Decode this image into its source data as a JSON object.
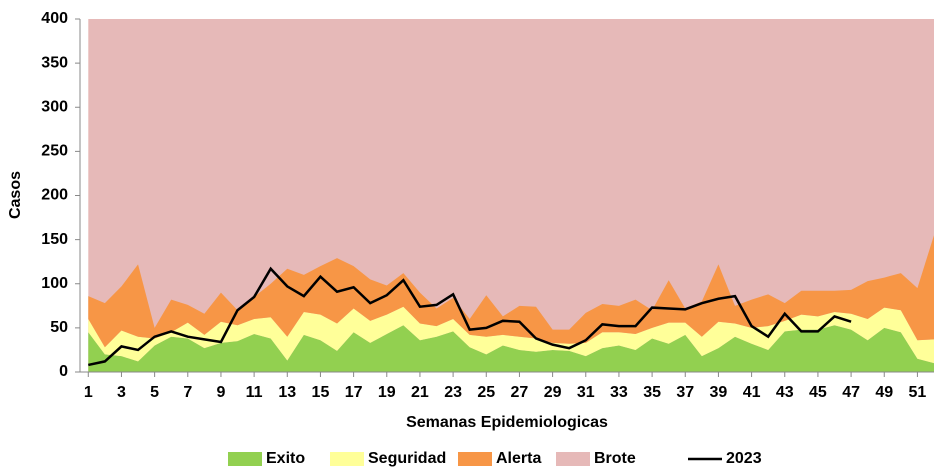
{
  "chart_data": {
    "type": "area",
    "stacked": true,
    "x_label": "Semanas Epidemiologicas",
    "y_label": "Casos",
    "x": [
      1,
      2,
      3,
      4,
      5,
      6,
      7,
      8,
      9,
      10,
      11,
      12,
      13,
      14,
      15,
      16,
      17,
      18,
      19,
      20,
      21,
      22,
      23,
      24,
      25,
      26,
      27,
      28,
      29,
      30,
      31,
      32,
      33,
      34,
      35,
      36,
      37,
      38,
      39,
      40,
      41,
      42,
      43,
      44,
      45,
      46,
      47,
      48,
      49,
      50,
      51,
      52
    ],
    "xlim": [
      0.5,
      52
    ],
    "xticks": [
      1,
      3,
      5,
      7,
      9,
      11,
      13,
      15,
      17,
      19,
      21,
      23,
      25,
      27,
      29,
      31,
      33,
      35,
      37,
      39,
      41,
      43,
      45,
      47,
      49,
      51
    ],
    "ylim": [
      0,
      400
    ],
    "yticks": [
      0,
      50,
      100,
      150,
      200,
      250,
      300,
      350,
      400
    ],
    "grid": false,
    "legend": "bottom",
    "series": [
      {
        "name": "Exito",
        "type": "area",
        "color": "#92d050",
        "values": [
          45,
          20,
          18,
          12,
          30,
          40,
          38,
          27,
          33,
          35,
          43,
          38,
          13,
          42,
          36,
          24,
          45,
          33,
          43,
          53,
          36,
          40,
          46,
          28,
          20,
          30,
          25,
          23,
          25,
          24,
          18,
          27,
          30,
          25,
          38,
          32,
          42,
          18,
          27,
          40,
          32,
          25,
          46,
          48,
          48,
          53,
          48,
          36,
          50,
          45,
          15,
          10
        ]
      },
      {
        "name": "Seguridad",
        "type": "area",
        "color": "#ffff99",
        "values": [
          15,
          8,
          29,
          28,
          8,
          5,
          18,
          15,
          24,
          18,
          17,
          24,
          27,
          26,
          29,
          31,
          27,
          25,
          22,
          21,
          19,
          12,
          14,
          14,
          20,
          12,
          15,
          15,
          8,
          8,
          15,
          18,
          15,
          18,
          12,
          24,
          14,
          22,
          30,
          15,
          18,
          27,
          12,
          17,
          15,
          15,
          18,
          24,
          23,
          25,
          21,
          27
        ]
      },
      {
        "name": "Alerta",
        "type": "area",
        "color": "#f79646",
        "values": [
          26,
          50,
          50,
          82,
          12,
          37,
          20,
          24,
          33,
          17,
          25,
          38,
          77,
          42,
          55,
          74,
          48,
          47,
          33,
          38,
          35,
          20,
          24,
          18,
          47,
          21,
          35,
          36,
          15,
          16,
          34,
          32,
          30,
          39,
          20,
          48,
          16,
          40,
          65,
          20,
          32,
          36,
          20,
          27,
          29,
          24,
          27,
          43,
          34,
          42,
          59,
          118
        ]
      },
      {
        "name": "Brote",
        "type": "fill-to-top",
        "color": "#e6b9b8"
      },
      {
        "name": "2023",
        "type": "line",
        "color": "#000000",
        "values": [
          8,
          12,
          29,
          25,
          40,
          46,
          40,
          37,
          34,
          70,
          85,
          117,
          97,
          86,
          108,
          91,
          96,
          78,
          87,
          104,
          74,
          76,
          88,
          48,
          50,
          58,
          57,
          38,
          31,
          27,
          36,
          54,
          52,
          52,
          73,
          72,
          71,
          78,
          83,
          86,
          52,
          40,
          66,
          46,
          46,
          63,
          57,
          null,
          null,
          null,
          null,
          null
        ]
      }
    ]
  }
}
